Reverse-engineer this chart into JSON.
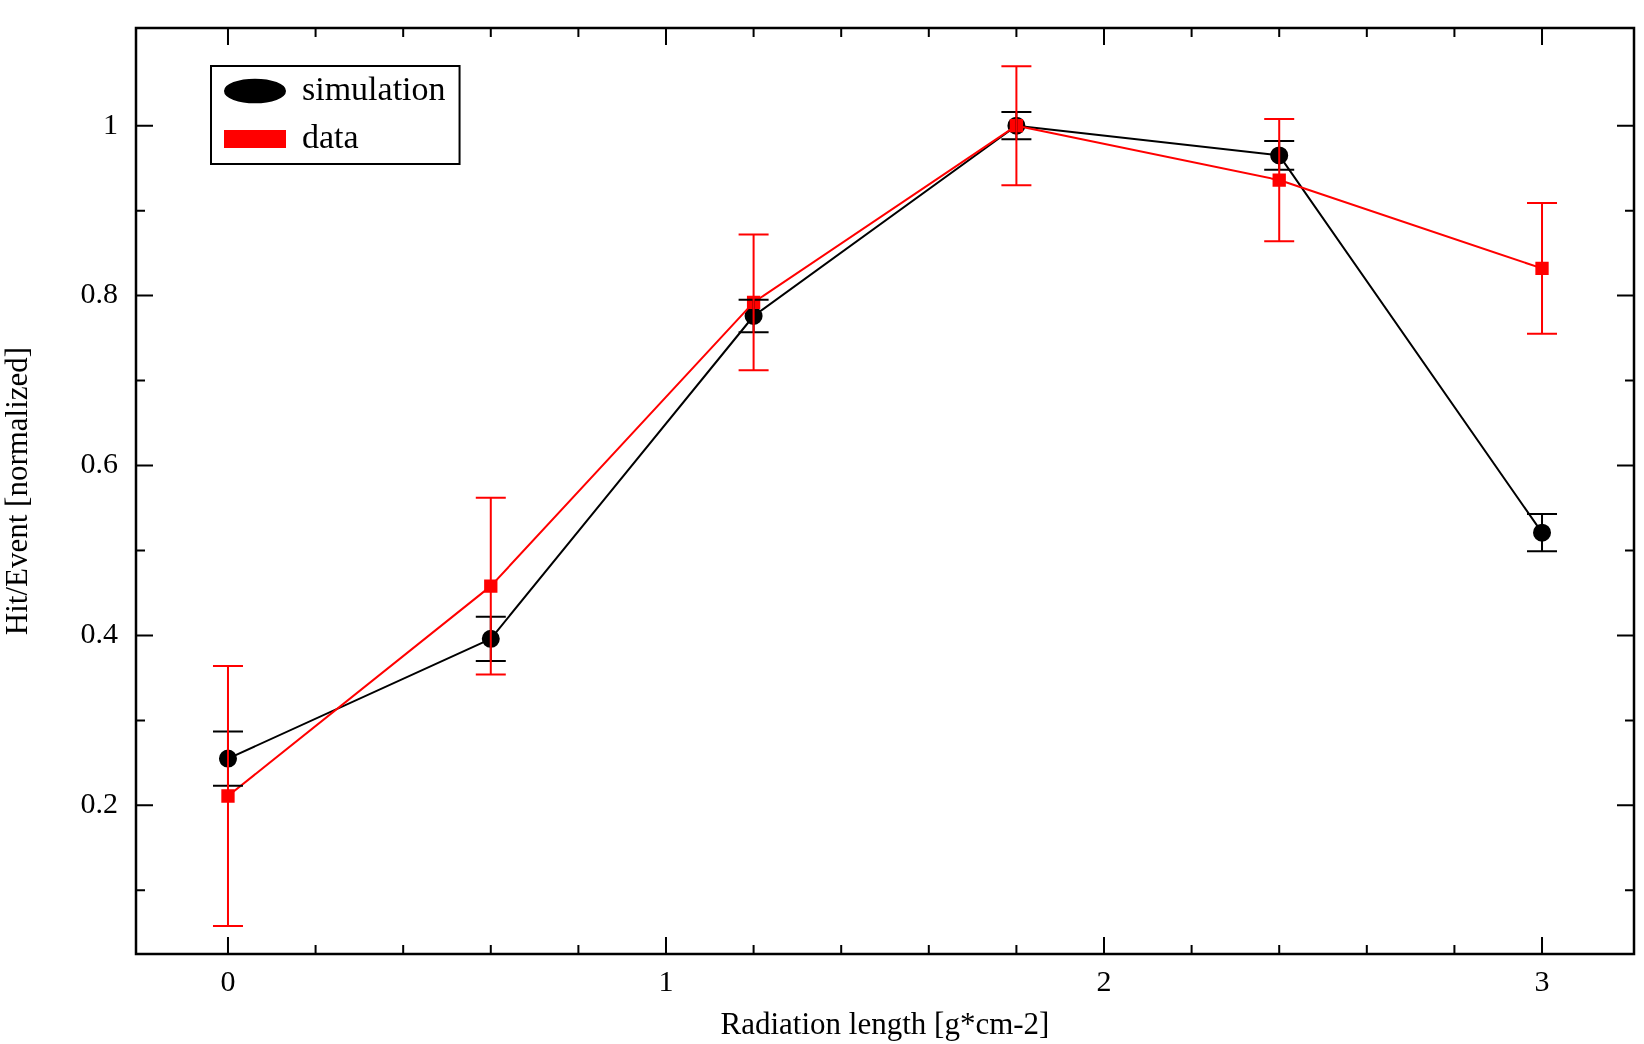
{
  "chart_data": {
    "type": "line",
    "xlabel": "Radiation length [g*cm-2]",
    "ylabel": "Hit/Event [normalized]",
    "xlim": [
      -0.21,
      3.21
    ],
    "ylim": [
      0.025,
      1.115
    ],
    "xticks": [
      0,
      {
        "value": 0.2,
        "label": null
      },
      {
        "value": 0.4,
        "label": null
      },
      {
        "value": 0.6,
        "label": null
      },
      {
        "value": 0.8,
        "label": null
      },
      1,
      {
        "value": 1.2,
        "label": null
      },
      {
        "value": 1.4,
        "label": null
      },
      {
        "value": 1.6,
        "label": null
      },
      {
        "value": 1.8,
        "label": null
      },
      2,
      {
        "value": 2.2,
        "label": null
      },
      {
        "value": 2.4,
        "label": null
      },
      {
        "value": 2.6,
        "label": null
      },
      {
        "value": 2.8,
        "label": null
      },
      3
    ],
    "yticks": [
      {
        "value": 0.1,
        "label": null
      },
      0.2,
      {
        "value": 0.3,
        "label": null
      },
      0.4,
      {
        "value": 0.5,
        "label": null
      },
      0.6,
      {
        "value": 0.7,
        "label": null
      },
      0.8,
      {
        "value": 0.9,
        "label": null
      },
      1
    ],
    "legend": "top left",
    "grid": false,
    "line_style": "solid",
    "series": [
      {
        "name": "simulation",
        "color": "#000000",
        "marker": "circle",
        "x": [
          0,
          0.6,
          1.2,
          1.8,
          2.4,
          3
        ],
        "values": [
          0.255,
          0.396,
          0.776,
          1.0,
          0.965,
          0.521
        ],
        "errors": [
          0.032,
          0.026,
          0.019,
          0.016,
          0.017,
          0.022
        ]
      },
      {
        "name": "data",
        "color": "#ff0000",
        "marker": "square",
        "x": [
          0,
          0.6,
          1.2,
          1.8,
          2.4,
          3
        ],
        "values": [
          0.211,
          0.458,
          0.792,
          1.0,
          0.936,
          0.832
        ],
        "errors": [
          0.153,
          0.104,
          0.08,
          0.07,
          0.072,
          0.077
        ]
      }
    ]
  }
}
